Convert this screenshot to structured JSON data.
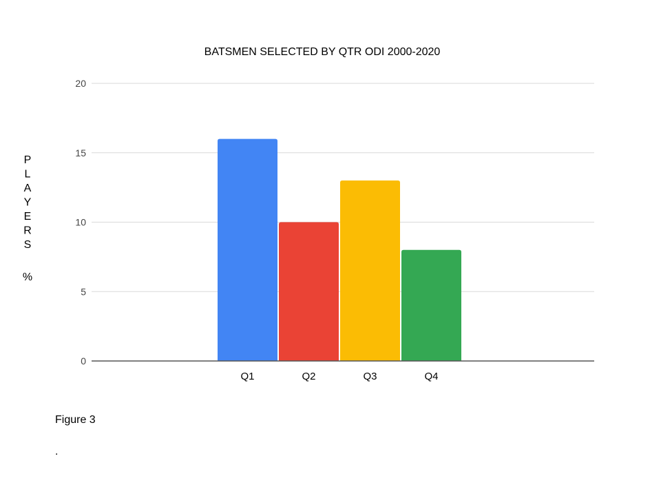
{
  "chart_data": {
    "type": "bar",
    "title": "BATSMEN SELECTED BY QTR ODI 2000-2020",
    "categories": [
      "Q1",
      "Q2",
      "Q3",
      "Q4"
    ],
    "values": [
      16,
      10,
      13,
      8
    ],
    "bar_colors": [
      "#4285F4",
      "#EA4335",
      "#FBBC04",
      "#34A853"
    ],
    "ylabel": "PLAYERS %",
    "xlabel": "",
    "ylim": [
      0,
      20
    ],
    "yticks": [
      "0",
      "5",
      "10",
      "15",
      "20"
    ],
    "grid": true,
    "legend": "none"
  },
  "caption": "Figure 3",
  "footnote": "."
}
